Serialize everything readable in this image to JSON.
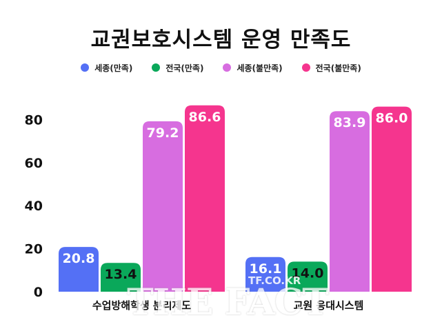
{
  "chart_data": {
    "type": "bar",
    "title": "교권보호시스템 운영 만족도",
    "categories": [
      "수업방해학생 분리제도",
      "교원 응대시스템"
    ],
    "series": [
      {
        "name": "세종(만족)",
        "color": "#5470f5",
        "values": [
          20.8,
          16.1
        ]
      },
      {
        "name": "전국(만족)",
        "color": "#0aa85a",
        "values": [
          13.4,
          14.0
        ]
      },
      {
        "name": "세종(불만족)",
        "color": "#d76de0",
        "values": [
          79.2,
          83.9
        ]
      },
      {
        "name": "전국(불만족)",
        "color": "#f5358e",
        "values": [
          86.6,
          86.0
        ]
      }
    ],
    "ylim": [
      0,
      90
    ],
    "yticks": [
      0,
      20,
      40,
      60,
      80
    ],
    "legend_position": "top",
    "grid": false,
    "xlabel": "",
    "ylabel": ""
  },
  "watermark": {
    "text": "THE FACT",
    "url": "TF.CO.KR"
  }
}
